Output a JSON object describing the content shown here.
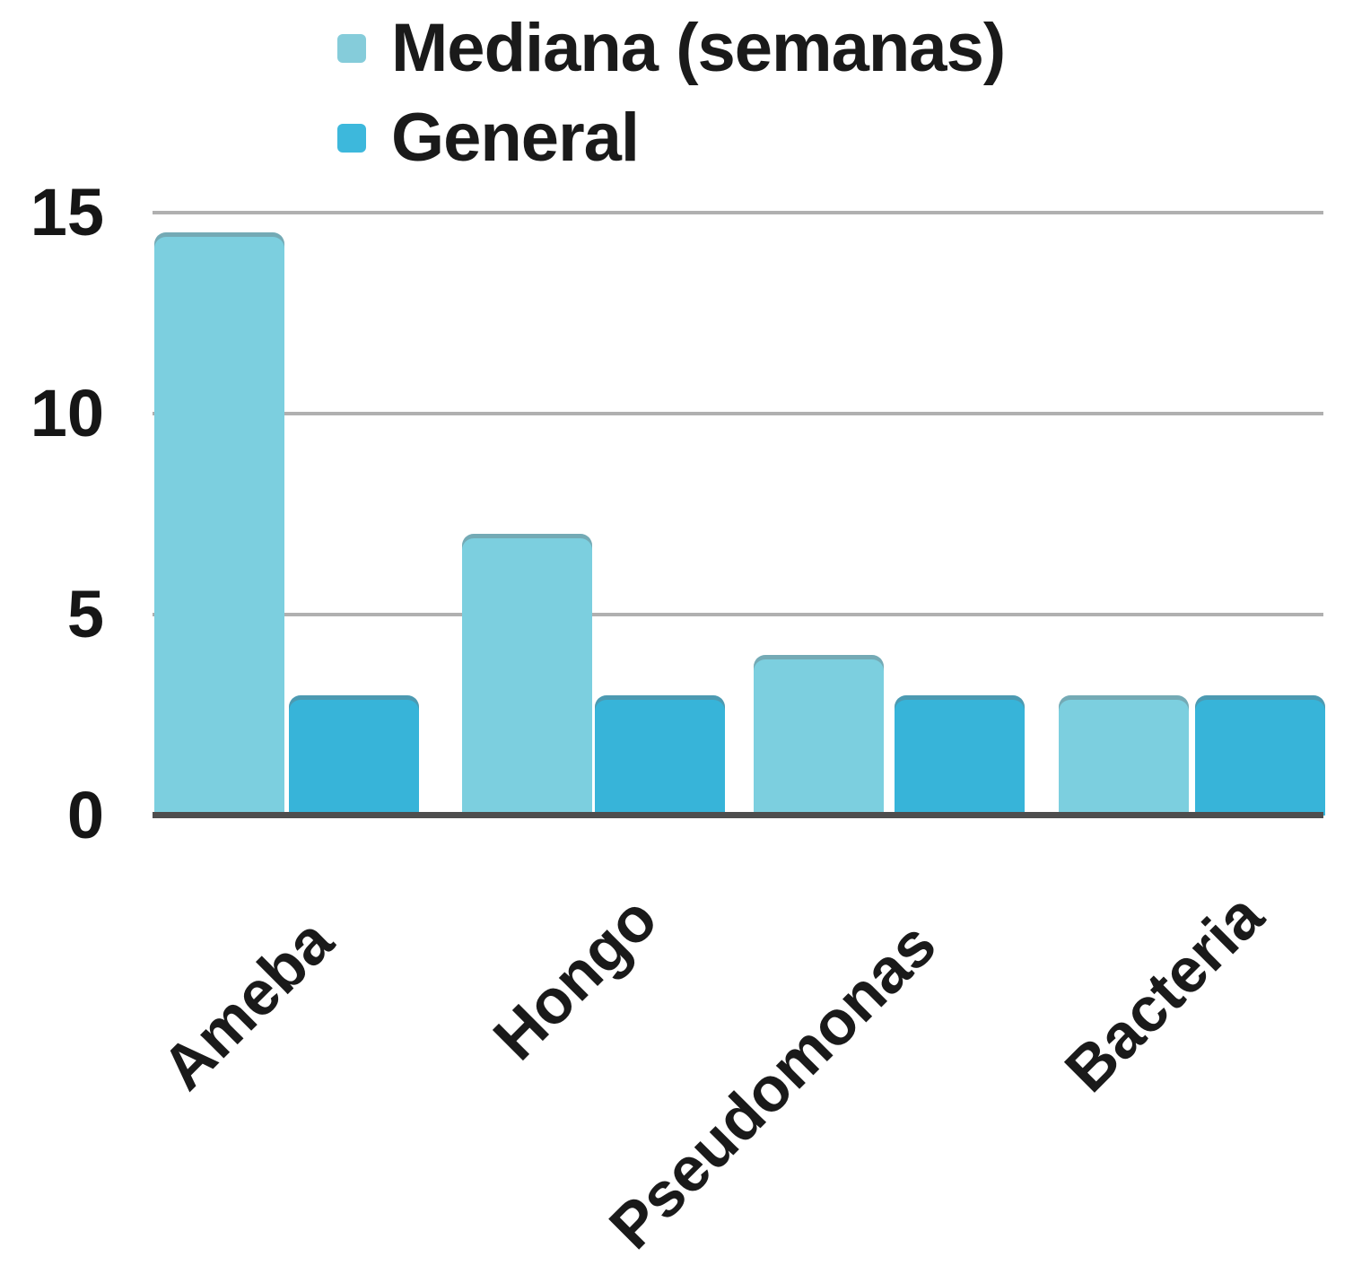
{
  "chart_data": {
    "type": "bar",
    "title": "",
    "xlabel": "",
    "ylabel": "",
    "categories": [
      "Ameba",
      "Hongo",
      "Pseudomonas",
      "Bacteria"
    ],
    "series": [
      {
        "name": "Mediana (semanas)",
        "values": [
          14.5,
          7,
          4,
          3
        ],
        "color": "#7ccfdf",
        "legend_color": "#85ccda"
      },
      {
        "name": "General",
        "values": [
          3,
          3,
          3,
          3
        ],
        "color": "#37b4d9",
        "legend_color": "#3db8dc"
      }
    ],
    "ylim": [
      0,
      15
    ],
    "yticks": [
      15,
      10,
      5,
      0
    ],
    "grid": true,
    "gridline_values": [
      15,
      10,
      5
    ],
    "legend_position": "top-left"
  },
  "colors": {
    "background": "#ffffff",
    "gridline": "#b0b0b0",
    "baseline": "#4e4e4e",
    "text": "#1a1a1a"
  }
}
